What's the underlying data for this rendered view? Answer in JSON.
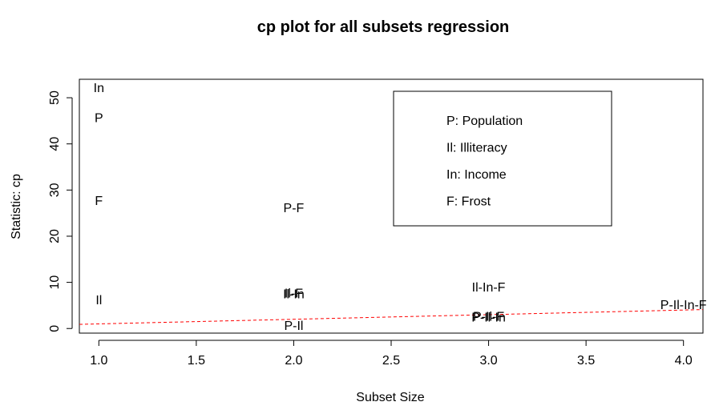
{
  "chart_data": {
    "type": "scatter",
    "title": "cp plot for all subsets regression",
    "xlabel": "Subset Size",
    "ylabel": "Statistic: cp",
    "xlim": [
      0.9,
      4.1
    ],
    "ylim": [
      -1,
      54
    ],
    "x_ticks": [
      1.0,
      1.5,
      2.0,
      2.5,
      3.0,
      3.5,
      4.0
    ],
    "x_tick_labels": [
      "1.0",
      "1.5",
      "2.0",
      "2.5",
      "3.0",
      "3.5",
      "4.0"
    ],
    "y_ticks": [
      0,
      10,
      20,
      30,
      40,
      50
    ],
    "y_tick_labels": [
      "0",
      "10",
      "20",
      "30",
      "40",
      "50"
    ],
    "points": [
      {
        "x": 1,
        "y": 52.0,
        "label": "In"
      },
      {
        "x": 1,
        "y": 45.5,
        "label": "P"
      },
      {
        "x": 1,
        "y": 27.5,
        "label": "F"
      },
      {
        "x": 1,
        "y": 6.0,
        "label": "Il"
      },
      {
        "x": 2,
        "y": 26.0,
        "label": "P-F"
      },
      {
        "x": 2,
        "y": 7.5,
        "label": "Il-F"
      },
      {
        "x": 2,
        "y": 7.3,
        "label": "Il-In"
      },
      {
        "x": 2,
        "y": 0.5,
        "label": "P-Il"
      },
      {
        "x": 3,
        "y": 8.8,
        "label": "Il-In-F"
      },
      {
        "x": 3,
        "y": 2.5,
        "label": "P-Il-F"
      },
      {
        "x": 3,
        "y": 2.3,
        "label": "P-Il-In"
      },
      {
        "x": 4,
        "y": 5.0,
        "label": "P-Il-In-F"
      }
    ],
    "reference_line": {
      "type": "dashed",
      "color": "#ff0000",
      "intercept": 0,
      "slope": 1
    },
    "legend": {
      "position": "top-right",
      "entries": [
        "P: Population",
        "Il: Illiteracy",
        "In: Income",
        "F: Frost"
      ]
    },
    "grid": false
  }
}
